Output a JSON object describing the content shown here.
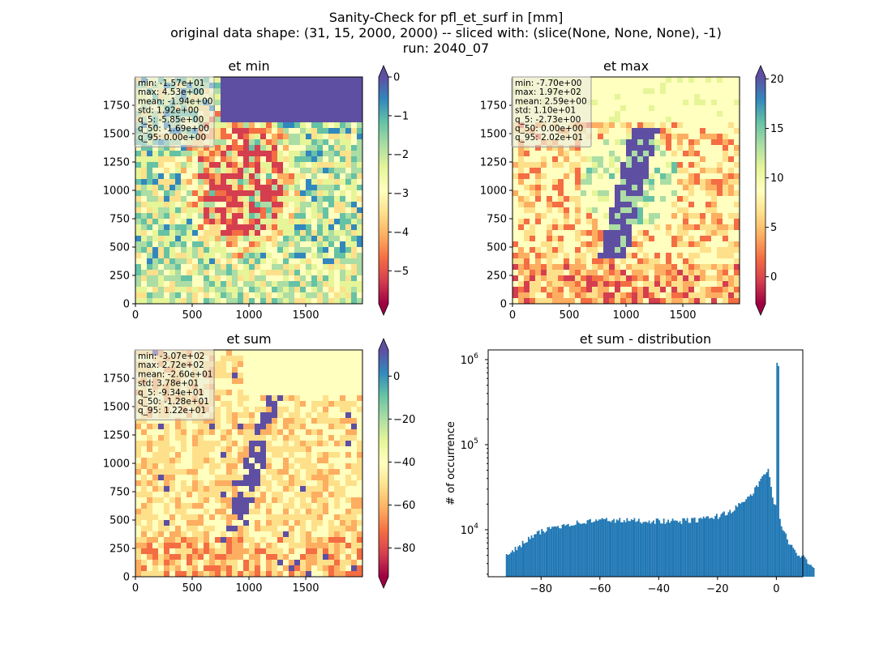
{
  "suptitle": {
    "line1": "Sanity-Check for pfl_et_surf in [mm]",
    "line2": "original data shape: (31, 15, 2000, 2000) -- sliced with: (slice(None, None, None), -1)",
    "line3": "run: 2040_07"
  },
  "chart_data": [
    {
      "type": "heatmap",
      "title": "et min",
      "xlim": [
        0,
        2000
      ],
      "ylim": [
        0,
        2000
      ],
      "xticks": [
        "0",
        "500",
        "1000",
        "1500"
      ],
      "yticks": [
        "0",
        "250",
        "500",
        "750",
        "1000",
        "1250",
        "1500",
        "1750"
      ],
      "colormap": "Spectral",
      "colorbar": {
        "range": [
          -5.85,
          0.0
        ],
        "ticks": [
          "0",
          "−1",
          "−2",
          "−3",
          "−4",
          "−5"
        ],
        "extend": "both"
      },
      "stats": [
        "min: -1.57e+01",
        "max: 4.53e+00",
        "mean: -1.94e+00",
        "std: 1.92e+00",
        "q_5: -5.85e+00",
        "q_50: -1.69e+00",
        "q_95: 0.00e+00"
      ]
    },
    {
      "type": "heatmap",
      "title": "et max",
      "xlim": [
        0,
        2000
      ],
      "ylim": [
        0,
        2000
      ],
      "xticks": [
        "0",
        "500",
        "1000",
        "1500"
      ],
      "yticks": [
        "0",
        "250",
        "500",
        "750",
        "1000",
        "1250",
        "1500",
        "1750"
      ],
      "colormap": "Spectral",
      "colorbar": {
        "range": [
          -2.73,
          20.2
        ],
        "ticks": [
          "0",
          "5",
          "10",
          "15",
          "20"
        ],
        "extend": "both"
      },
      "stats": [
        "min: -7.70e+00",
        "max: 1.97e+02",
        "mean: 2.59e+00",
        "std: 1.10e+01",
        "q_5: -2.73e+00",
        "q_50: 0.00e+00",
        "q_95: 2.02e+01"
      ]
    },
    {
      "type": "heatmap",
      "title": "et sum",
      "xlim": [
        0,
        2000
      ],
      "ylim": [
        0,
        2000
      ],
      "xticks": [
        "0",
        "500",
        "1000",
        "1500"
      ],
      "yticks": [
        "0",
        "250",
        "500",
        "750",
        "1000",
        "1250",
        "1500",
        "1750"
      ],
      "colormap": "Spectral",
      "colorbar": {
        "range": [
          -93.4,
          12.2
        ],
        "ticks": [
          "0",
          "−20",
          "−40",
          "−60",
          "−80"
        ],
        "extend": "both"
      },
      "stats": [
        "min: -3.07e+02",
        "max: 2.72e+02",
        "mean: -2.60e+01",
        "std: 3.78e+01",
        "q_5: -9.34e+01",
        "q_50: -1.28e+01",
        "q_95: 1.22e+01"
      ]
    },
    {
      "type": "bar",
      "title": "et sum - distribution",
      "ylabel": "# of occurrence",
      "xlabel": "",
      "yscale": "log",
      "xlim": [
        -98,
        9
      ],
      "ylim": [
        2800,
        1300000
      ],
      "xticks": [
        "−80",
        "−60",
        "−40",
        "−20",
        "0"
      ],
      "yticks": [
        "10^4",
        "10^5",
        "10^6"
      ],
      "color": "#1f77b4",
      "bins": [
        {
          "x": -92,
          "y": 4800
        },
        {
          "x": -88,
          "y": 6300
        },
        {
          "x": -84,
          "y": 8000
        },
        {
          "x": -80,
          "y": 9500
        },
        {
          "x": -76,
          "y": 10800
        },
        {
          "x": -72,
          "y": 11500
        },
        {
          "x": -68,
          "y": 12000
        },
        {
          "x": -64,
          "y": 12500
        },
        {
          "x": -60,
          "y": 13000
        },
        {
          "x": -56,
          "y": 13000
        },
        {
          "x": -52,
          "y": 12800
        },
        {
          "x": -48,
          "y": 12800
        },
        {
          "x": -44,
          "y": 12700
        },
        {
          "x": -40,
          "y": 12700
        },
        {
          "x": -36,
          "y": 12500
        },
        {
          "x": -32,
          "y": 12700
        },
        {
          "x": -28,
          "y": 13000
        },
        {
          "x": -24,
          "y": 13500
        },
        {
          "x": -20,
          "y": 14500
        },
        {
          "x": -16,
          "y": 16500
        },
        {
          "x": -12,
          "y": 20000
        },
        {
          "x": -8,
          "y": 28000
        },
        {
          "x": -4,
          "y": 45000
        },
        {
          "x": -3,
          "y": 55000
        },
        {
          "x": -2,
          "y": 30000
        },
        {
          "x": -1,
          "y": 20000
        },
        {
          "x": 0,
          "y": 860000
        },
        {
          "x": 1,
          "y": 14000
        },
        {
          "x": 2,
          "y": 10000
        },
        {
          "x": 4,
          "y": 7000
        },
        {
          "x": 6,
          "y": 5500
        },
        {
          "x": 8,
          "y": 5000
        },
        {
          "x": 10,
          "y": 4500
        },
        {
          "x": 12,
          "y": 3800
        }
      ]
    }
  ]
}
